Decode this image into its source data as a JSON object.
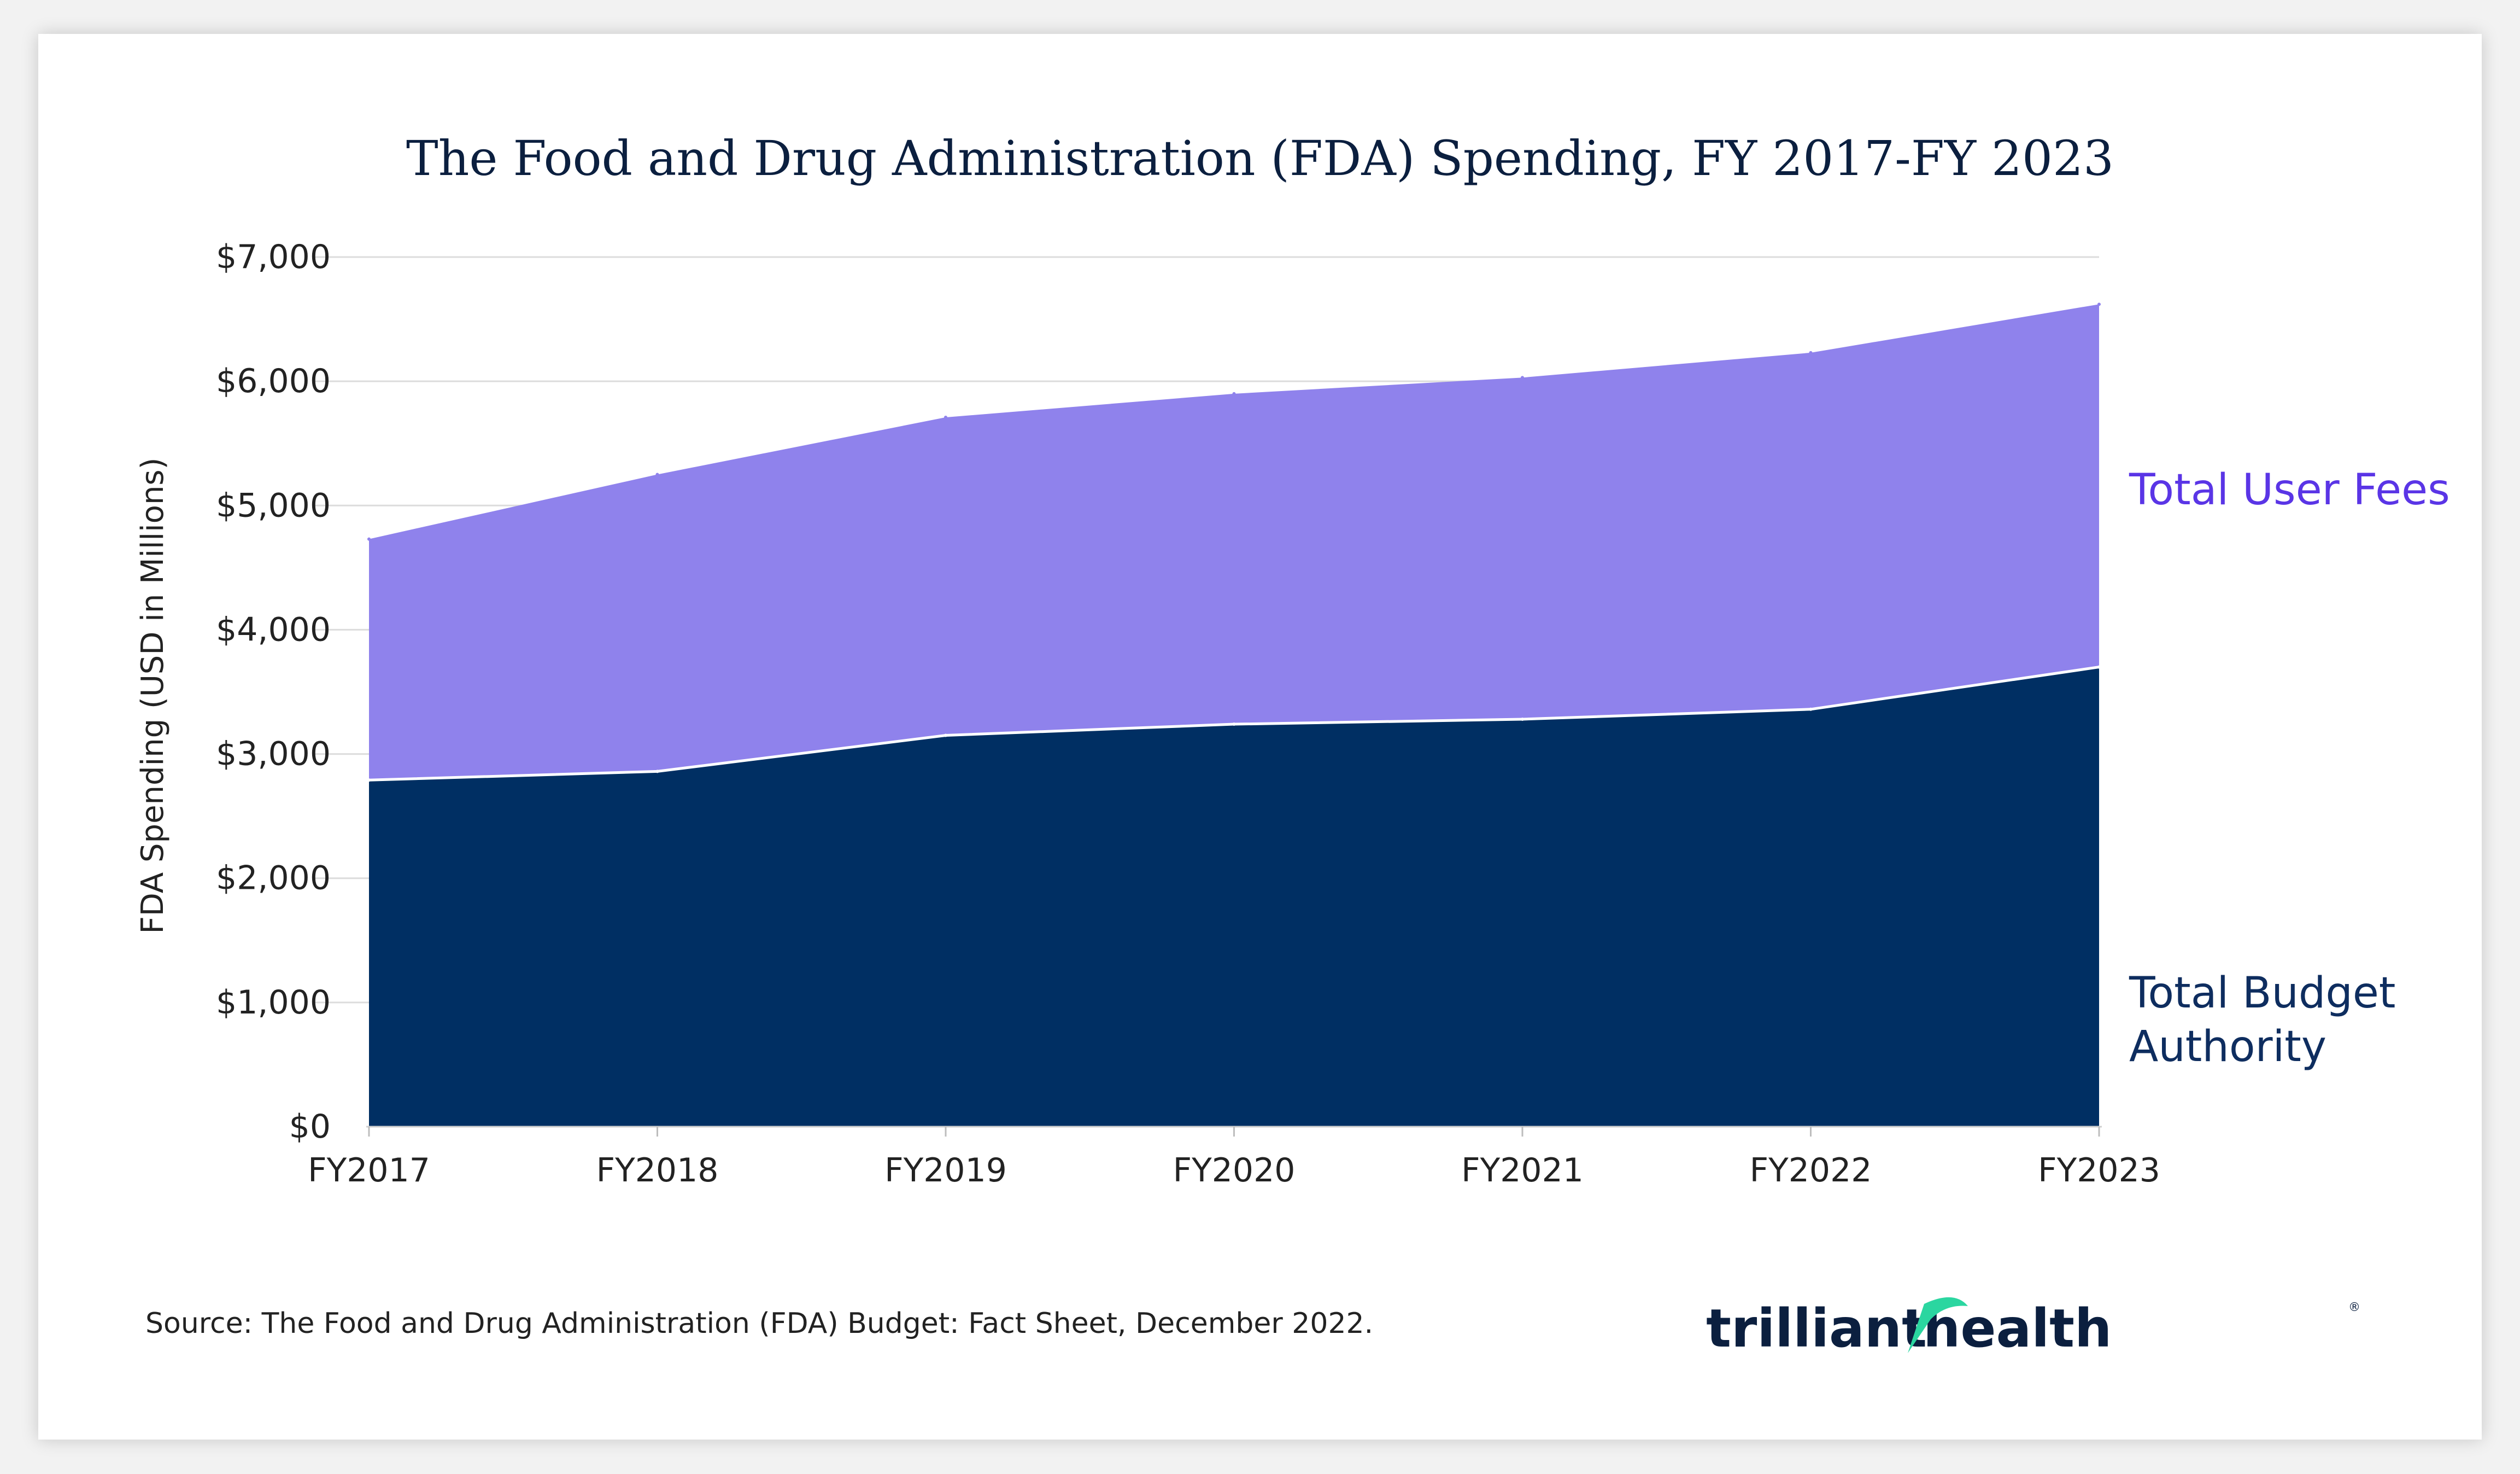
{
  "colors": {
    "fees": "#8f82ec",
    "budget": "#002f63",
    "grid": "#dcdcdc",
    "fees_label": "#5a35e6",
    "budget_label": "#0e2d5f",
    "logo_accent": "#2bd6a0"
  },
  "chart_data": {
    "type": "area",
    "stacked": true,
    "title": "The Food and Drug Administration (FDA) Spending, FY 2017-FY 2023",
    "xlabel": "",
    "ylabel": "FDA Spending (USD in Millions)",
    "categories": [
      "FY2017",
      "FY2018",
      "FY2019",
      "FY2020",
      "FY2021",
      "FY2022",
      "FY2023"
    ],
    "ylim": [
      0,
      7000
    ],
    "yticks": [
      0,
      1000,
      2000,
      3000,
      4000,
      5000,
      6000,
      7000
    ],
    "ytick_labels": [
      "$0",
      "$1,000",
      "$2,000",
      "$3,000",
      "$4,000",
      "$5,000",
      "$6,000",
      "$7,000"
    ],
    "grid": true,
    "series": [
      {
        "name": "Total Budget Authority",
        "values": [
          2790,
          2860,
          3150,
          3240,
          3280,
          3360,
          3700
        ]
      },
      {
        "name": "Total User Fees",
        "values": [
          1940,
          2390,
          2560,
          2660,
          2750,
          2870,
          2920
        ]
      }
    ],
    "series_labels": {
      "fees": "Total User Fees",
      "budget_line1": "Total Budget",
      "budget_line2": "Authority"
    }
  },
  "source": "Source: The Food and Drug Administration (FDA) Budget: Fact Sheet, December 2022.",
  "logo": {
    "part1": "trilliant",
    "part2": "health",
    "reg": "®"
  }
}
